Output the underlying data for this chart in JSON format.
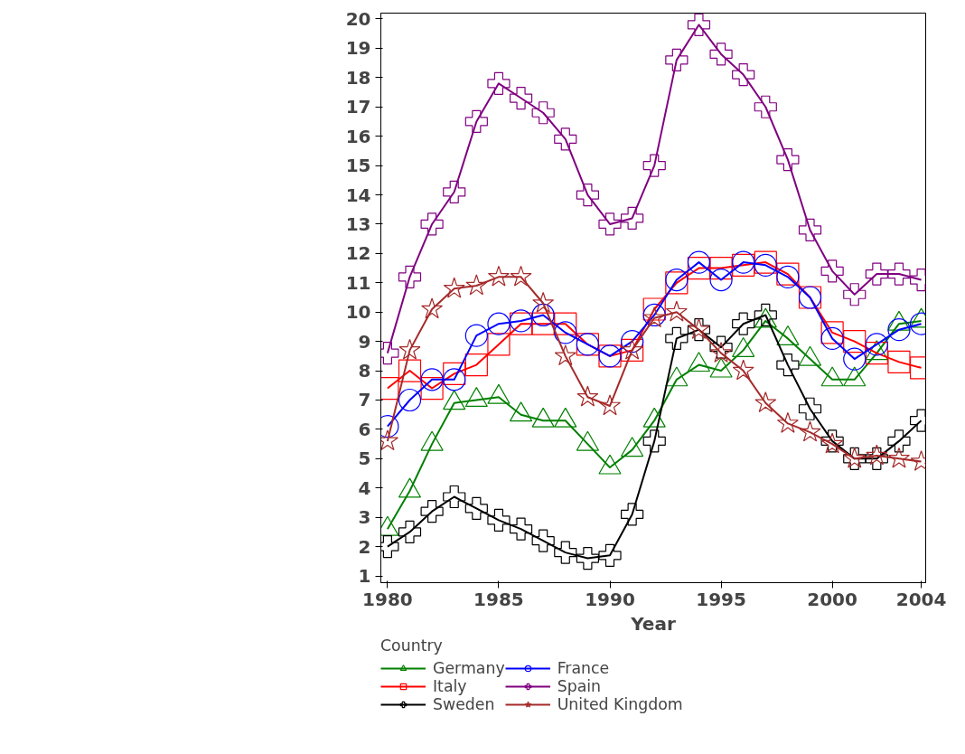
{
  "chart_data": {
    "type": "line",
    "xlabel": "Year",
    "legend_title": "Country",
    "legend": "bottom",
    "grid": false,
    "line_style": "solid",
    "x": [
      1980,
      1981,
      1982,
      1983,
      1984,
      1985,
      1986,
      1987,
      1988,
      1989,
      1990,
      1991,
      1992,
      1993,
      1994,
      1995,
      1996,
      1997,
      1998,
      1999,
      2000,
      2001,
      2002,
      2003,
      2004
    ],
    "xlim": [
      1979.7,
      2004.2
    ],
    "xticks": [
      1980,
      1985,
      1990,
      1995,
      2000,
      2004
    ],
    "ylim": [
      0.77,
      20.2
    ],
    "yticks": [
      1,
      2,
      3,
      4,
      5,
      6,
      7,
      8,
      9,
      10,
      11,
      12,
      13,
      14,
      15,
      16,
      17,
      18,
      19,
      20
    ],
    "series": [
      {
        "name": "Germany",
        "color": "#008000",
        "marker": "triangle",
        "values": [
          2.6,
          3.9,
          5.5,
          6.9,
          7.0,
          7.1,
          6.5,
          6.3,
          6.3,
          5.5,
          4.7,
          5.3,
          6.3,
          7.7,
          8.2,
          8.0,
          8.7,
          9.7,
          9.1,
          8.4,
          7.7,
          7.7,
          8.6,
          9.6,
          9.7
        ]
      },
      {
        "name": "Italy",
        "color": "#ff0000",
        "marker": "square",
        "values": [
          7.4,
          8.0,
          7.4,
          7.9,
          8.2,
          8.9,
          9.6,
          9.6,
          9.6,
          8.9,
          8.5,
          8.7,
          10.1,
          11.0,
          11.5,
          11.5,
          11.6,
          11.7,
          11.3,
          10.5,
          9.3,
          9.0,
          8.6,
          8.3,
          8.1
        ]
      },
      {
        "name": "Sweden",
        "color": "#000000",
        "marker": "cross",
        "values": [
          2.0,
          2.5,
          3.2,
          3.7,
          3.3,
          2.9,
          2.6,
          2.2,
          1.8,
          1.6,
          1.7,
          3.1,
          5.6,
          9.1,
          9.4,
          8.8,
          9.6,
          9.9,
          8.2,
          6.7,
          5.6,
          5.0,
          5.0,
          5.6,
          6.3
        ]
      },
      {
        "name": "France",
        "color": "#0000ff",
        "marker": "circle",
        "values": [
          6.1,
          7.0,
          7.7,
          7.7,
          9.2,
          9.6,
          9.7,
          9.9,
          9.3,
          8.9,
          8.5,
          9.0,
          9.9,
          11.1,
          11.7,
          11.1,
          11.7,
          11.6,
          11.2,
          10.5,
          9.1,
          8.4,
          8.9,
          9.4,
          9.6
        ]
      },
      {
        "name": "Spain",
        "color": "#800080",
        "marker": "cross",
        "values": [
          8.6,
          11.2,
          13.0,
          14.1,
          16.5,
          17.8,
          17.3,
          16.8,
          15.9,
          14.0,
          13.0,
          13.2,
          15.0,
          18.6,
          19.8,
          18.8,
          18.1,
          17.0,
          15.2,
          12.8,
          11.4,
          10.6,
          11.3,
          11.3,
          11.1
        ]
      },
      {
        "name": "United Kingdom",
        "color": "#a52a2a",
        "marker": "star",
        "values": [
          5.6,
          8.7,
          10.1,
          10.8,
          10.9,
          11.2,
          11.2,
          10.3,
          8.5,
          7.1,
          6.8,
          8.7,
          9.8,
          10.0,
          9.4,
          8.6,
          8.0,
          6.9,
          6.2,
          5.9,
          5.5,
          5.0,
          5.1,
          5.0,
          4.9
        ]
      }
    ]
  }
}
